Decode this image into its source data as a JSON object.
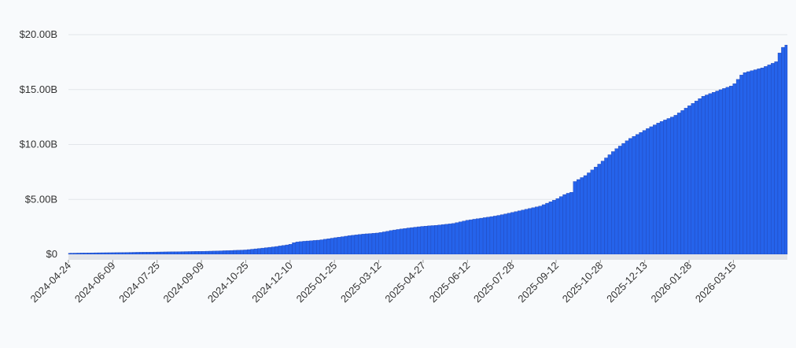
{
  "chart_data": {
    "type": "bar",
    "title": "",
    "xlabel": "",
    "ylabel": "",
    "ylim": [
      0,
      20
    ],
    "y_unit": "billion USD",
    "y_ticks": [
      {
        "value": 0,
        "label": "$0"
      },
      {
        "value": 5,
        "label": "$5.00B"
      },
      {
        "value": 10,
        "label": "$10.00B"
      },
      {
        "value": 15,
        "label": "$15.00B"
      },
      {
        "value": 20,
        "label": "$20.00B"
      }
    ],
    "x_range": [
      "2024-04-24",
      "2026-05-10"
    ],
    "x_tick_labels": [
      "2024-04-24",
      "2024-06-09",
      "2024-07-25",
      "2024-09-09",
      "2024-10-25",
      "2024-12-10",
      "2025-01-25",
      "2025-03-12",
      "2025-04-27",
      "2025-06-12",
      "2025-07-28",
      "2025-09-12",
      "2025-10-28",
      "2025-12-13",
      "2026-01-28",
      "2026-03-15"
    ],
    "grid": true,
    "legend": "none",
    "bar_color": "#2563eb",
    "bar_edge_color": "#1e40af",
    "series": [
      {
        "points": [
          [
            "2024-04-24",
            0.1
          ],
          [
            "2024-05-09",
            0.12
          ],
          [
            "2024-05-24",
            0.14
          ],
          [
            "2024-06-09",
            0.15
          ],
          [
            "2024-06-24",
            0.17
          ],
          [
            "2024-07-09",
            0.19
          ],
          [
            "2024-07-25",
            0.21
          ],
          [
            "2024-08-10",
            0.23
          ],
          [
            "2024-08-25",
            0.25
          ],
          [
            "2024-09-09",
            0.27
          ],
          [
            "2024-09-24",
            0.3
          ],
          [
            "2024-10-10",
            0.35
          ],
          [
            "2024-10-25",
            0.4
          ],
          [
            "2024-11-10",
            0.55
          ],
          [
            "2024-11-25",
            0.7
          ],
          [
            "2024-12-10",
            0.9
          ],
          [
            "2024-12-15",
            1.1
          ],
          [
            "2024-12-26",
            1.2
          ],
          [
            "2025-01-10",
            1.3
          ],
          [
            "2025-01-25",
            1.5
          ],
          [
            "2025-02-10",
            1.7
          ],
          [
            "2025-02-25",
            1.85
          ],
          [
            "2025-03-12",
            1.95
          ],
          [
            "2025-03-27",
            2.2
          ],
          [
            "2025-04-12",
            2.4
          ],
          [
            "2025-04-27",
            2.55
          ],
          [
            "2025-05-12",
            2.65
          ],
          [
            "2025-05-28",
            2.8
          ],
          [
            "2025-06-12",
            3.1
          ],
          [
            "2025-06-27",
            3.3
          ],
          [
            "2025-07-12",
            3.5
          ],
          [
            "2025-07-28",
            3.8
          ],
          [
            "2025-08-12",
            4.1
          ],
          [
            "2025-08-27",
            4.4
          ],
          [
            "2025-09-12",
            5.0
          ],
          [
            "2025-09-22",
            5.5
          ],
          [
            "2025-09-30",
            5.7
          ],
          [
            "2025-10-01",
            6.6
          ],
          [
            "2025-10-13",
            7.2
          ],
          [
            "2025-10-28",
            8.3
          ],
          [
            "2025-11-12",
            9.5
          ],
          [
            "2025-11-27",
            10.5
          ],
          [
            "2025-12-13",
            11.3
          ],
          [
            "2025-12-28",
            12.0
          ],
          [
            "2026-01-13",
            12.6
          ],
          [
            "2026-01-28",
            13.5
          ],
          [
            "2026-02-12",
            14.4
          ],
          [
            "2026-02-27",
            14.9
          ],
          [
            "2026-03-15",
            15.4
          ],
          [
            "2026-03-25",
            16.5
          ],
          [
            "2026-04-15",
            17.0
          ],
          [
            "2026-04-30",
            17.6
          ],
          [
            "2026-05-03",
            18.7
          ],
          [
            "2026-05-10",
            19.1
          ]
        ]
      }
    ]
  }
}
